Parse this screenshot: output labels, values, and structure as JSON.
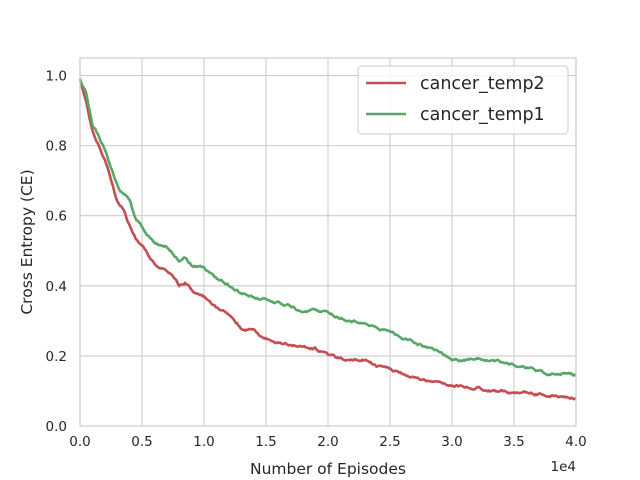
{
  "chart_data": {
    "type": "line",
    "title": "",
    "xlabel": "Number of Episodes",
    "ylabel": "Cross Entropy (CE)",
    "x_offset_text": "1e4",
    "xlim": [
      0,
      40000
    ],
    "ylim": [
      0,
      1.05
    ],
    "x_scale": 10000,
    "xticks": [
      0,
      5000,
      10000,
      15000,
      20000,
      25000,
      30000,
      35000,
      40000
    ],
    "xtick_labels": [
      "0.0",
      "0.5",
      "1.0",
      "1.5",
      "2.0",
      "2.5",
      "3.0",
      "3.5",
      "4.0"
    ],
    "yticks": [
      0,
      0.2,
      0.4,
      0.6,
      0.8,
      1.0
    ],
    "ytick_labels": [
      "0.0",
      "0.2",
      "0.4",
      "0.6",
      "0.8",
      "1.0"
    ],
    "grid": true,
    "legend_position": "top-right",
    "series": [
      {
        "name": "cancer_temp2",
        "color": "#c44e52",
        "x": [
          0,
          500,
          1000,
          1500,
          2000,
          2500,
          3000,
          3500,
          4000,
          4500,
          5000,
          6000,
          7000,
          7500,
          8000,
          8500,
          9000,
          10000,
          11000,
          12000,
          13000,
          14000,
          15000,
          16000,
          17000,
          18000,
          19000,
          20000,
          21000,
          22000,
          23000,
          24000,
          25000,
          26000,
          27000,
          28000,
          29000,
          30000,
          31000,
          32000,
          33000,
          34000,
          35000,
          36000,
          37000,
          38000,
          39000,
          40000
        ],
        "y": [
          0.99,
          0.93,
          0.84,
          0.8,
          0.76,
          0.7,
          0.64,
          0.62,
          0.57,
          0.53,
          0.52,
          0.46,
          0.44,
          0.43,
          0.4,
          0.41,
          0.39,
          0.37,
          0.34,
          0.32,
          0.28,
          0.27,
          0.25,
          0.24,
          0.23,
          0.225,
          0.22,
          0.2,
          0.195,
          0.19,
          0.19,
          0.17,
          0.16,
          0.15,
          0.14,
          0.13,
          0.125,
          0.12,
          0.11,
          0.11,
          0.1,
          0.1,
          0.095,
          0.095,
          0.09,
          0.09,
          0.085,
          0.08
        ]
      },
      {
        "name": "cancer_temp1",
        "color": "#55a868",
        "x": [
          0,
          500,
          1000,
          1500,
          2000,
          2500,
          3000,
          3500,
          4000,
          4500,
          5000,
          6000,
          7000,
          8000,
          8500,
          9000,
          10000,
          11000,
          12000,
          13000,
          14000,
          15000,
          16000,
          17000,
          18000,
          19000,
          20000,
          21000,
          22000,
          23000,
          24000,
          25000,
          26000,
          27000,
          28000,
          29000,
          30000,
          31000,
          32000,
          33000,
          34000,
          35000,
          36000,
          37000,
          38000,
          39000,
          40000
        ],
        "y": [
          0.99,
          0.95,
          0.86,
          0.83,
          0.79,
          0.74,
          0.69,
          0.66,
          0.64,
          0.59,
          0.57,
          0.52,
          0.51,
          0.47,
          0.48,
          0.46,
          0.45,
          0.42,
          0.4,
          0.38,
          0.37,
          0.36,
          0.35,
          0.34,
          0.33,
          0.33,
          0.32,
          0.31,
          0.3,
          0.3,
          0.28,
          0.27,
          0.25,
          0.24,
          0.22,
          0.21,
          0.19,
          0.19,
          0.195,
          0.19,
          0.18,
          0.175,
          0.17,
          0.155,
          0.15,
          0.15,
          0.145
        ]
      }
    ]
  }
}
